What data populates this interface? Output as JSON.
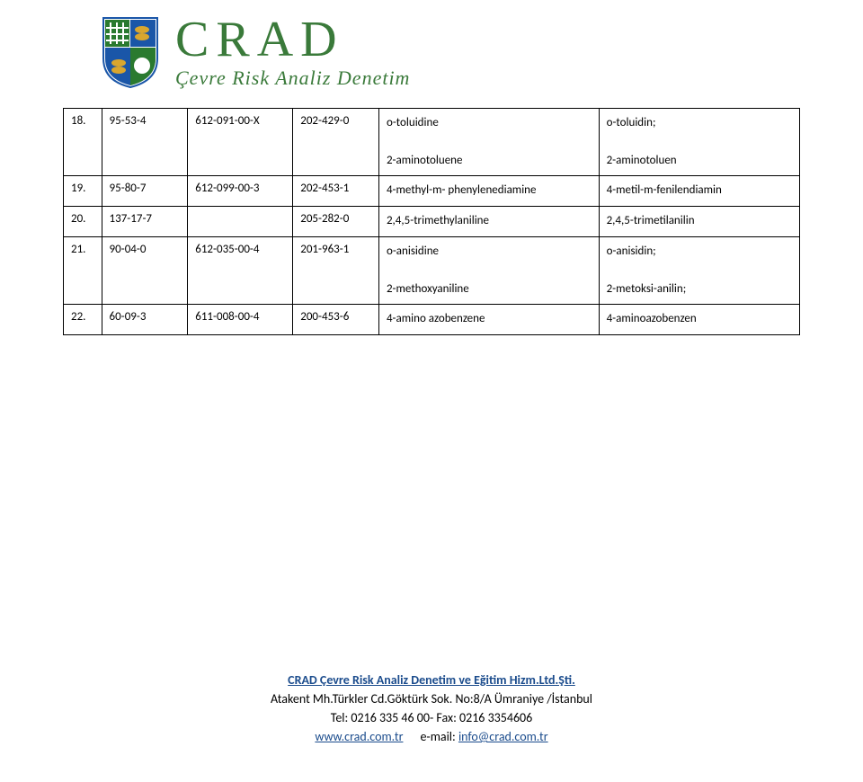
{
  "brand": {
    "title": "CRAD",
    "subtitle": "Çevre Risk Analiz Denetim"
  },
  "table": {
    "rows": [
      {
        "num": "18.",
        "cas": "95-53-4",
        "idx": "612-091-00-X",
        "ec": "202-429-0",
        "en_lines": [
          "o-toluidine",
          "2-aminotoluene"
        ],
        "tr_lines": [
          "o-toluidin;",
          "2-aminotoluen"
        ]
      },
      {
        "num": "19.",
        "cas": "95-80-7",
        "idx": "612-099-00-3",
        "ec": "202-453-1",
        "en_lines": [
          "4-methyl-m- phenylenediamine"
        ],
        "tr_lines": [
          "4-metil-m-fenilendiamin"
        ]
      },
      {
        "num": "20.",
        "cas": "137-17-7",
        "idx": "",
        "ec": "205-282-0",
        "en_lines": [
          "2,4,5-trimethylaniline"
        ],
        "tr_lines": [
          "2,4,5-trimetilanilin"
        ]
      },
      {
        "num": "21.",
        "cas": "90-04-0",
        "idx": "612-035-00-4",
        "ec": "201-963-1",
        "en_lines": [
          "o-anisidine",
          "2-methoxyaniline"
        ],
        "tr_lines": [
          "o-anisidin;",
          "2-metoksi-anilin;"
        ]
      },
      {
        "num": "22.",
        "cas": "60-09-3",
        "idx": "611-008-00-4",
        "ec": "200-453-6",
        "en_lines": [
          "4-amino azobenzene"
        ],
        "tr_lines": [
          "4-aminoazobenzen"
        ]
      }
    ]
  },
  "footer": {
    "company": "CRAD Çevre Risk Analiz Denetim ve Eğitim Hizm.Ltd.Şti.",
    "address": "Atakent Mh.Türkler Cd.Göktürk Sok. No:8/A Ümraniye /İstanbul",
    "phone": "Tel: 0216 335 46 00- Fax: 0216 3354606",
    "web_label": "www.crad.com.tr",
    "email_prefix": "e-mail:  ",
    "email": "info@crad.com.tr"
  },
  "colors": {
    "brand_green": "#3a7a3a",
    "link_blue": "#1a4b8c",
    "shield_blue": "#1a56a8",
    "shield_green": "#2a7a2f",
    "shield_yellow": "#d9a62e",
    "shield_white": "#ffffff",
    "border": "#000000"
  }
}
